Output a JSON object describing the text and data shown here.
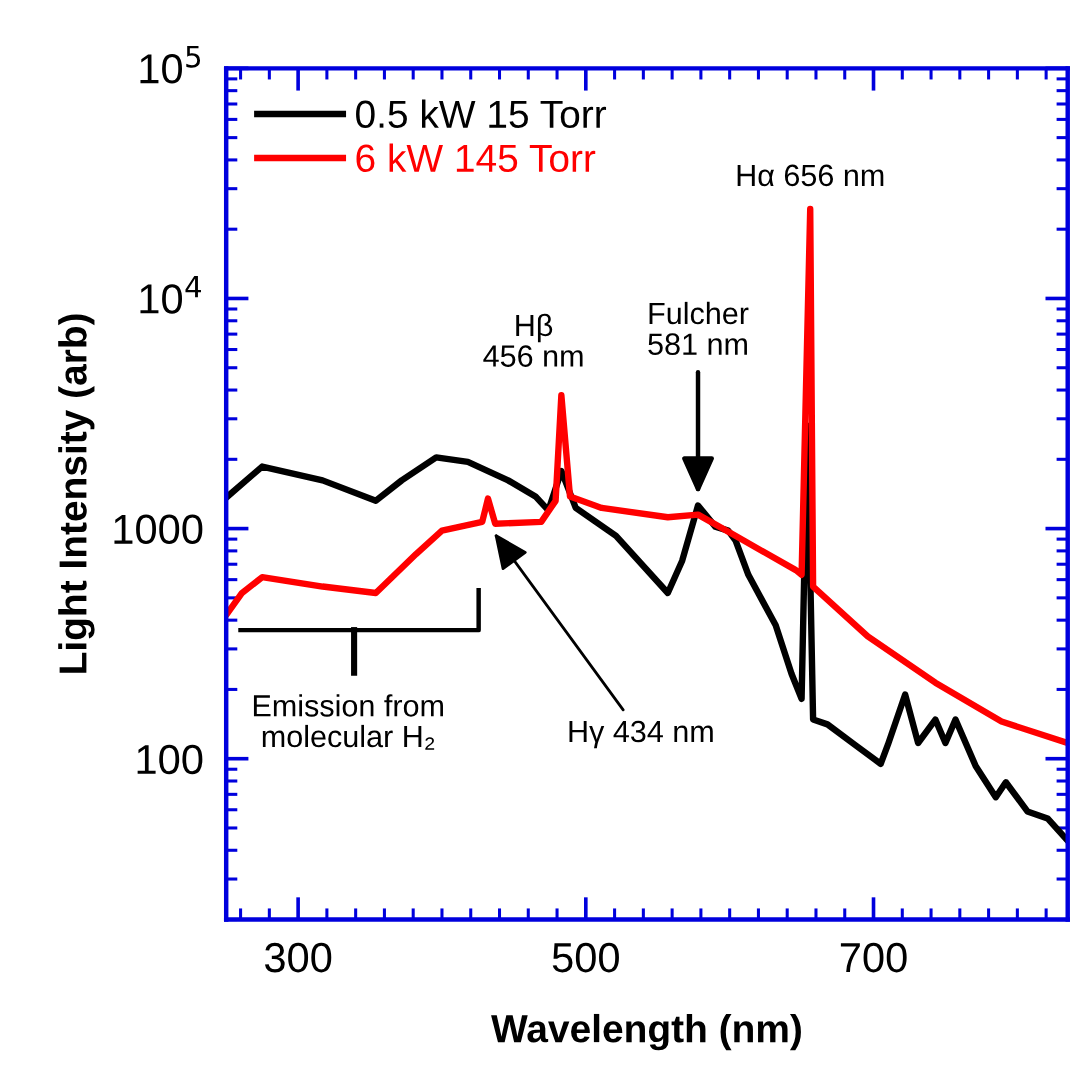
{
  "chart_data": {
    "type": "line",
    "xlabel": "Wavelength (nm)",
    "ylabel": "Light Intensity (arb)",
    "log": "y",
    "grid": false,
    "legend": "top left",
    "marker": "none",
    "line_style": "solid",
    "xlim": [
      250,
      835
    ],
    "xticks": [
      300,
      500,
      700
    ],
    "ylim": [
      20,
      100000
    ],
    "yticks": [
      100,
      1000,
      {
        "value": 10000,
        "label": "10$^{4}$"
      },
      {
        "value": 100000,
        "label": "10$^{5}$"
      }
    ],
    "series": [
      {
        "name": "0.5 kW 15 Torr",
        "color": "#000000",
        "x": [
          251,
          275,
          317,
          354,
          372,
          396,
          418,
          446,
          465,
          474,
          483,
          493,
          521,
          557,
          567,
          578,
          590,
          599,
          604,
          613,
          632,
          643,
          650,
          654,
          658,
          668,
          687,
          705,
          710,
          722,
          731,
          743,
          750,
          757,
          771,
          785,
          792,
          807,
          821,
          835
        ],
        "values": [
          1380,
          1860,
          1620,
          1320,
          1620,
          2040,
          1950,
          1620,
          1380,
          1200,
          1780,
          1230,
          930,
          525,
          725,
          1260,
          1020,
          980,
          890,
          630,
          380,
          234,
          182,
          2800,
          148,
          141,
          115,
          95,
          115,
          190,
          117,
          148,
          117,
          148,
          93,
          68,
          79,
          59,
          55,
          44
        ]
      },
      {
        "name": "6 kW 145 Torr",
        "color": "#ff0000",
        "x": [
          251,
          261,
          275,
          317,
          354,
          382,
          400,
          428,
          432,
          437,
          469,
          479,
          483,
          489,
          511,
          557,
          578,
          604,
          646,
          650,
          656,
          658,
          696,
          743,
          789,
          835
        ],
        "values": [
          430,
          525,
          615,
          560,
          525,
          775,
          980,
          1070,
          1350,
          1050,
          1070,
          1320,
          3800,
          1380,
          1230,
          1120,
          1150,
          930,
          660,
          630,
          24500,
          560,
          340,
          214,
          145,
          117
        ]
      }
    ],
    "annotations": [
      {
        "text": "Hβ\n456 nm",
        "x": 483,
        "y": 3800
      },
      {
        "text": "Fulcher\n581 nm",
        "x": 578,
        "y": 1260
      },
      {
        "text": "Hα 656 nm",
        "x": 656,
        "y": 24500
      },
      {
        "text": "Hγ 434 nm",
        "x": 434,
        "y": 1000
      },
      "Emission from\nmolecular H₂"
    ]
  }
}
